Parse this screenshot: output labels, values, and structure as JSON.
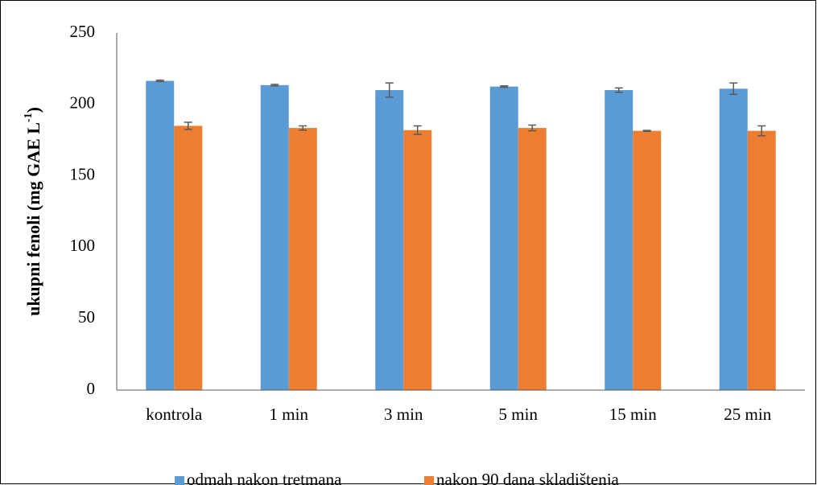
{
  "chart_data": {
    "type": "bar",
    "y_label": {
      "text": "ukupni fenoli (mg GAE L",
      "superscript": "-1",
      "end": ")"
    },
    "categories": [
      "kontrola",
      "1 min",
      "3 min",
      "5 min",
      "15 min",
      "25 min"
    ],
    "series": [
      {
        "name": "odmah nakon tretmana",
        "color": "#5b9bd5",
        "values": [
          216.5,
          213.5,
          210,
          212.5,
          210,
          211
        ],
        "errors": [
          0.5,
          0.5,
          5,
          0.5,
          1.5,
          4
        ]
      },
      {
        "name": "nakon 90 dana skladištenja",
        "color": "#ed7d31",
        "values": [
          185,
          183.5,
          182,
          183.5,
          181.5,
          181.5
        ],
        "errors": [
          2.5,
          1.5,
          3,
          2,
          0.3,
          3.5
        ]
      }
    ],
    "ylim": [
      0,
      250
    ],
    "yticks": [
      0,
      50,
      100,
      150,
      200,
      250
    ],
    "grid": false,
    "legend": "bottom"
  }
}
